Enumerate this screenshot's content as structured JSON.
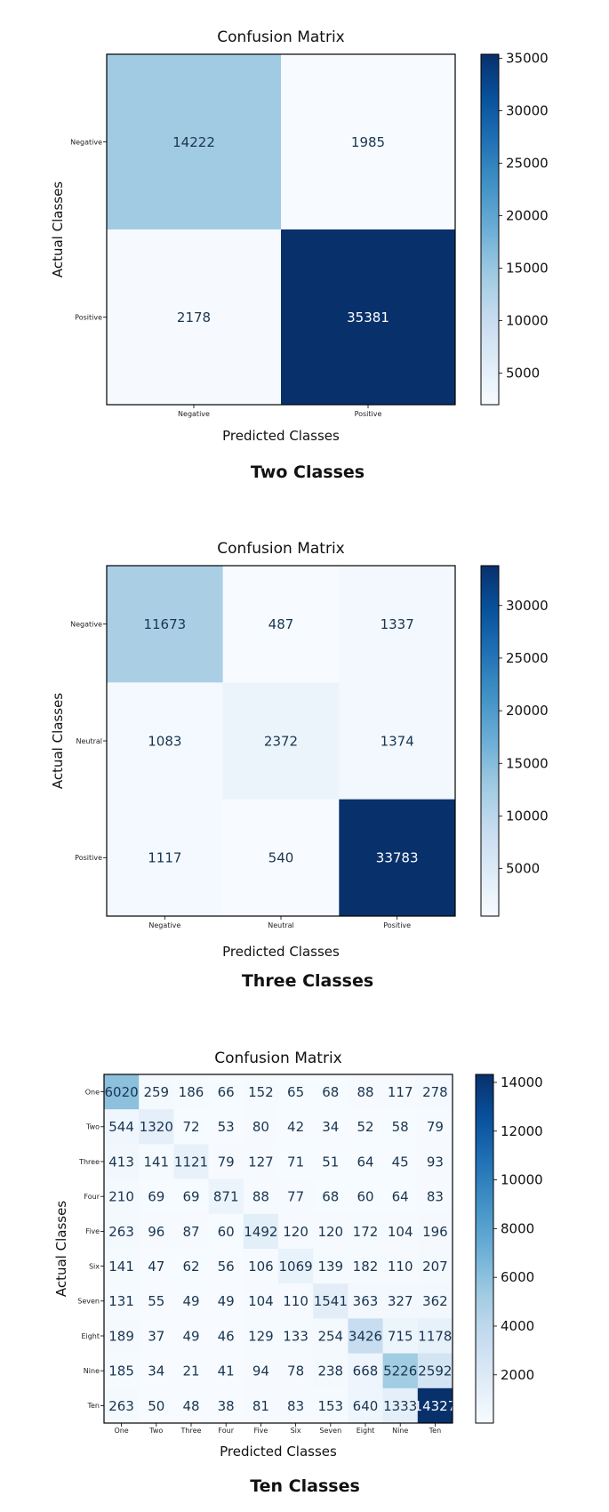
{
  "chart_data": [
    {
      "type": "heatmap",
      "title": "Confusion Matrix",
      "caption": "Two Classes",
      "xlabel": "Predicted Classes",
      "ylabel": "Actual Classes",
      "labels": [
        "Negative",
        "Positive"
      ],
      "matrix": [
        [
          14222,
          1985
        ],
        [
          2178,
          35381
        ]
      ],
      "colorbar_ticks": [
        5000,
        10000,
        15000,
        20000,
        25000,
        30000,
        35000
      ],
      "colormap": [
        "#f7fbff",
        "#08306b"
      ]
    },
    {
      "type": "heatmap",
      "title": "Confusion Matrix",
      "caption": "Three Classes",
      "xlabel": "Predicted Classes",
      "ylabel": "Actual Classes",
      "labels": [
        "Negative",
        "Neutral",
        "Positive"
      ],
      "matrix": [
        [
          11673,
          487,
          1337
        ],
        [
          1083,
          2372,
          1374
        ],
        [
          1117,
          540,
          33783
        ]
      ],
      "colorbar_ticks": [
        5000,
        10000,
        15000,
        20000,
        25000,
        30000
      ],
      "colormap": [
        "#f7fbff",
        "#08306b"
      ]
    },
    {
      "type": "heatmap",
      "title": "Confusion Matrix",
      "caption": "Ten Classes",
      "xlabel": "Predicted Classes",
      "ylabel": "Actual Classes",
      "labels": [
        "One",
        "Two",
        "Three",
        "Four",
        "Five",
        "Six",
        "Seven",
        "Eight",
        "Nine",
        "Ten"
      ],
      "matrix": [
        [
          6020,
          259,
          186,
          66,
          152,
          65,
          68,
          88,
          117,
          278
        ],
        [
          544,
          1320,
          72,
          53,
          80,
          42,
          34,
          52,
          58,
          79
        ],
        [
          413,
          141,
          1121,
          79,
          127,
          71,
          51,
          64,
          45,
          93
        ],
        [
          210,
          69,
          69,
          871,
          88,
          77,
          68,
          60,
          64,
          83
        ],
        [
          263,
          96,
          87,
          60,
          1492,
          120,
          120,
          172,
          104,
          196
        ],
        [
          141,
          47,
          62,
          56,
          106,
          1069,
          139,
          182,
          110,
          207
        ],
        [
          131,
          55,
          49,
          49,
          104,
          110,
          1541,
          363,
          327,
          362
        ],
        [
          189,
          37,
          49,
          46,
          129,
          133,
          254,
          3426,
          715,
          1178
        ],
        [
          185,
          34,
          21,
          41,
          94,
          78,
          238,
          668,
          5226,
          2592
        ],
        [
          263,
          50,
          48,
          38,
          81,
          83,
          153,
          640,
          1333,
          14327
        ]
      ],
      "colorbar_ticks": [
        2000,
        4000,
        6000,
        8000,
        10000,
        12000,
        14000
      ],
      "colormap": [
        "#f7fbff",
        "#08306b"
      ]
    }
  ]
}
